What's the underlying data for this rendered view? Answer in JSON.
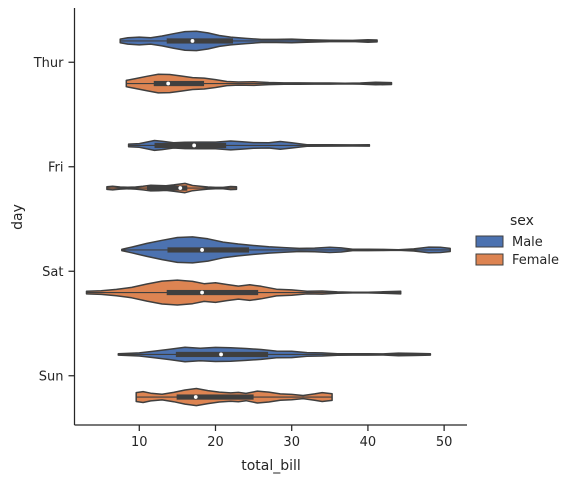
{
  "chart_data": {
    "type": "violin",
    "orientation": "horizontal",
    "xlabel": "total_bill",
    "ylabel": "day",
    "xlim": [
      1.5,
      53
    ],
    "xticks": [
      10,
      20,
      30,
      40,
      50
    ],
    "categories": [
      "Thur",
      "Fri",
      "Sat",
      "Sun"
    ],
    "cut": 0,
    "legend": {
      "title": "sex",
      "placement": "right",
      "entries": [
        {
          "name": "Male",
          "color": "#4c72b0"
        },
        {
          "name": "Female",
          "color": "#dd8452"
        }
      ]
    },
    "series": [
      {
        "name": "Male",
        "color": "#4c72b0",
        "violins": [
          {
            "category": "Thur",
            "min": 7.5,
            "max": 41.2,
            "q1": 13.6,
            "median": 16.98,
            "q3": 22.3,
            "density": [
              [
                7.5,
                0.14
              ],
              [
                8.5,
                0.24
              ],
              [
                10,
                0.3
              ],
              [
                11.5,
                0.24
              ],
              [
                13,
                0.38
              ],
              [
                14.5,
                0.56
              ],
              [
                16,
                0.72
              ],
              [
                17.5,
                0.74
              ],
              [
                19,
                0.62
              ],
              [
                20.5,
                0.42
              ],
              [
                22,
                0.3
              ],
              [
                24,
                0.2
              ],
              [
                26,
                0.12
              ],
              [
                28,
                0.12
              ],
              [
                30,
                0.14
              ],
              [
                32,
                0.1
              ],
              [
                35,
                0.05
              ],
              [
                38,
                0.04
              ],
              [
                40,
                0.1
              ],
              [
                41.2,
                0.07
              ]
            ]
          },
          {
            "category": "Fri",
            "min": 8.6,
            "max": 40.2,
            "q1": 12.0,
            "median": 17.2,
            "q3": 21.4,
            "density": [
              [
                8.6,
                0.1
              ],
              [
                10,
                0.14
              ],
              [
                12,
                0.38
              ],
              [
                13,
                0.32
              ],
              [
                14.5,
                0.2
              ],
              [
                16,
                0.24
              ],
              [
                18,
                0.26
              ],
              [
                20,
                0.26
              ],
              [
                22,
                0.34
              ],
              [
                23.5,
                0.28
              ],
              [
                25,
                0.22
              ],
              [
                27,
                0.2
              ],
              [
                28.5,
                0.3
              ],
              [
                30,
                0.2
              ],
              [
                32,
                0.06
              ],
              [
                35,
                0.05
              ],
              [
                38,
                0.04
              ],
              [
                40.2,
                0.05
              ]
            ]
          },
          {
            "category": "Sat",
            "min": 7.7,
            "max": 50.8,
            "q1": 13.7,
            "median": 18.24,
            "q3": 24.4,
            "density": [
              [
                7.7,
                0.05
              ],
              [
                9,
                0.22
              ],
              [
                11,
                0.5
              ],
              [
                13,
                0.74
              ],
              [
                15,
                0.96
              ],
              [
                17,
                1.0
              ],
              [
                19,
                0.86
              ],
              [
                21,
                0.6
              ],
              [
                23,
                0.46
              ],
              [
                25,
                0.34
              ],
              [
                27,
                0.24
              ],
              [
                29,
                0.18
              ],
              [
                31,
                0.12
              ],
              [
                33,
                0.14
              ],
              [
                35,
                0.2
              ],
              [
                36.5,
                0.16
              ],
              [
                38,
                0.05
              ],
              [
                40,
                0.05
              ],
              [
                42,
                0.04
              ],
              [
                44,
                0.02
              ],
              [
                46,
                0.08
              ],
              [
                48,
                0.22
              ],
              [
                49.5,
                0.2
              ],
              [
                50.8,
                0.12
              ]
            ]
          },
          {
            "category": "Sun",
            "min": 7.25,
            "max": 48.2,
            "q1": 14.8,
            "median": 20.73,
            "q3": 26.9,
            "density": [
              [
                7.25,
                0.05
              ],
              [
                8.5,
                0.08
              ],
              [
                10,
                0.12
              ],
              [
                12,
                0.26
              ],
              [
                14,
                0.4
              ],
              [
                16,
                0.56
              ],
              [
                18,
                0.48
              ],
              [
                20,
                0.54
              ],
              [
                22,
                0.52
              ],
              [
                24,
                0.46
              ],
              [
                26,
                0.38
              ],
              [
                28,
                0.26
              ],
              [
                30,
                0.24
              ],
              [
                32,
                0.14
              ],
              [
                34,
                0.12
              ],
              [
                36,
                0.06
              ],
              [
                38,
                0.05
              ],
              [
                40,
                0.05
              ],
              [
                42,
                0.04
              ],
              [
                44,
                0.1
              ],
              [
                46,
                0.08
              ],
              [
                48.2,
                0.05
              ]
            ]
          }
        ]
      },
      {
        "name": "Female",
        "color": "#dd8452",
        "violins": [
          {
            "category": "Thur",
            "min": 8.3,
            "max": 43.1,
            "q1": 11.9,
            "median": 13.79,
            "q3": 18.5,
            "density": [
              [
                8.3,
                0.24
              ],
              [
                9.5,
                0.38
              ],
              [
                11,
                0.56
              ],
              [
                12.5,
                0.72
              ],
              [
                14,
                0.7
              ],
              [
                15.5,
                0.58
              ],
              [
                17,
                0.46
              ],
              [
                18.5,
                0.42
              ],
              [
                20,
                0.3
              ],
              [
                21.5,
                0.16
              ],
              [
                23,
                0.12
              ],
              [
                25,
                0.14
              ],
              [
                27,
                0.08
              ],
              [
                29,
                0.05
              ],
              [
                31,
                0.05
              ],
              [
                33,
                0.04
              ],
              [
                35,
                0.04
              ],
              [
                37,
                0.03
              ],
              [
                39,
                0.04
              ],
              [
                41,
                0.1
              ],
              [
                43.1,
                0.07
              ]
            ]
          },
          {
            "category": "Fri",
            "min": 5.75,
            "max": 22.75,
            "q1": 11.0,
            "median": 15.38,
            "q3": 16.3,
            "density": [
              [
                5.75,
                0.1
              ],
              [
                6.5,
                0.14
              ],
              [
                7.5,
                0.08
              ],
              [
                8.5,
                0.06
              ],
              [
                9.5,
                0.08
              ],
              [
                10.5,
                0.14
              ],
              [
                11.5,
                0.22
              ],
              [
                12.5,
                0.2
              ],
              [
                13.5,
                0.18
              ],
              [
                14.5,
                0.24
              ],
              [
                15.5,
                0.32
              ],
              [
                16,
                0.36
              ],
              [
                17,
                0.2
              ],
              [
                18,
                0.14
              ],
              [
                19,
                0.08
              ],
              [
                20,
                0.05
              ],
              [
                21,
                0.05
              ],
              [
                22,
                0.12
              ],
              [
                22.75,
                0.1
              ]
            ]
          },
          {
            "category": "Sat",
            "min": 3.07,
            "max": 44.3,
            "q1": 13.6,
            "median": 18.24,
            "q3": 25.6,
            "density": [
              [
                3.07,
                0.1
              ],
              [
                5,
                0.14
              ],
              [
                7,
                0.24
              ],
              [
                9,
                0.4
              ],
              [
                11,
                0.66
              ],
              [
                13,
                0.88
              ],
              [
                15,
                0.96
              ],
              [
                17,
                0.86
              ],
              [
                18.5,
                0.68
              ],
              [
                20,
                0.76
              ],
              [
                21.5,
                0.62
              ],
              [
                23,
                0.5
              ],
              [
                24.5,
                0.6
              ],
              [
                26,
                0.48
              ],
              [
                28,
                0.26
              ],
              [
                30,
                0.2
              ],
              [
                32,
                0.1
              ],
              [
                34,
                0.12
              ],
              [
                36,
                0.05
              ],
              [
                38,
                0.03
              ],
              [
                40,
                0.03
              ],
              [
                42,
                0.06
              ],
              [
                44.3,
                0.1
              ]
            ]
          },
          {
            "category": "Sun",
            "min": 9.6,
            "max": 35.3,
            "q1": 14.9,
            "median": 17.41,
            "q3": 25.0,
            "density": [
              [
                9.6,
                0.34
              ],
              [
                10.5,
                0.42
              ],
              [
                11.5,
                0.3
              ],
              [
                13,
                0.22
              ],
              [
                14.5,
                0.36
              ],
              [
                16,
                0.54
              ],
              [
                17.5,
                0.66
              ],
              [
                19,
                0.5
              ],
              [
                20.5,
                0.38
              ],
              [
                22,
                0.32
              ],
              [
                23,
                0.36
              ],
              [
                24,
                0.28
              ],
              [
                25.5,
                0.46
              ],
              [
                27,
                0.38
              ],
              [
                28.5,
                0.24
              ],
              [
                30,
                0.2
              ],
              [
                31.5,
                0.12
              ],
              [
                33,
                0.24
              ],
              [
                34,
                0.34
              ],
              [
                35.3,
                0.26
              ]
            ]
          }
        ]
      }
    ]
  }
}
